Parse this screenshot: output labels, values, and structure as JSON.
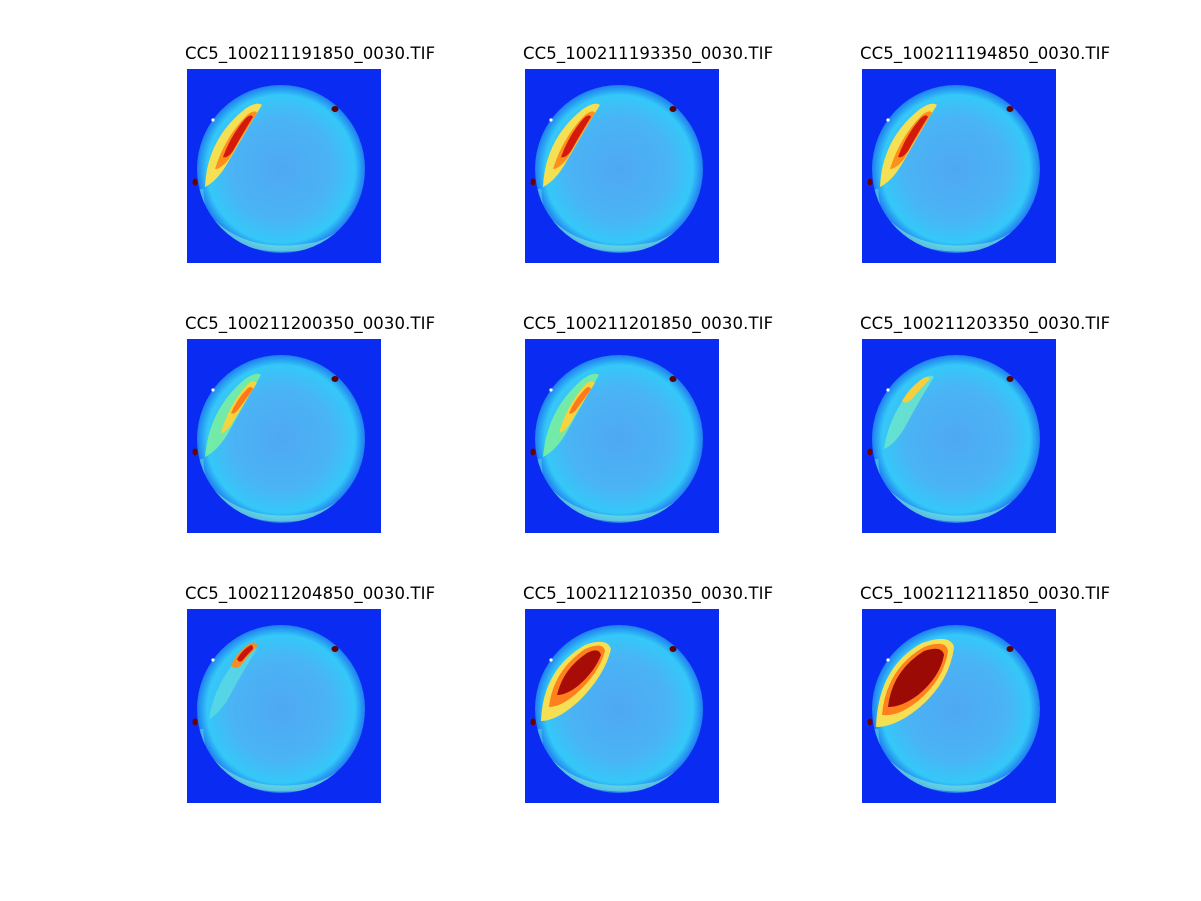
{
  "colors": {
    "background": "#ffffff",
    "image_background": "#0a2cf2",
    "colormap": "jet"
  },
  "panels": [
    {
      "title": "CC5_100211191850_0030.TIF",
      "aurora": "upper-left-arc-strong"
    },
    {
      "title": "CC5_100211193350_0030.TIF",
      "aurora": "upper-left-arc-strong"
    },
    {
      "title": "CC5_100211194850_0030.TIF",
      "aurora": "upper-left-arc-strong"
    },
    {
      "title": "CC5_100211200350_0030.TIF",
      "aurora": "upper-left-arc-medium"
    },
    {
      "title": "CC5_100211201850_0030.TIF",
      "aurora": "upper-left-arc-medium"
    },
    {
      "title": "CC5_100211203350_0030.TIF",
      "aurora": "upper-left-arc-weak"
    },
    {
      "title": "CC5_100211204850_0030.TIF",
      "aurora": "upper-left-spot"
    },
    {
      "title": "CC5_100211210350_0030.TIF",
      "aurora": "upper-left-blob-strong"
    },
    {
      "title": "CC5_100211211850_0030.TIF",
      "aurora": "upper-left-blob-very-strong"
    }
  ]
}
